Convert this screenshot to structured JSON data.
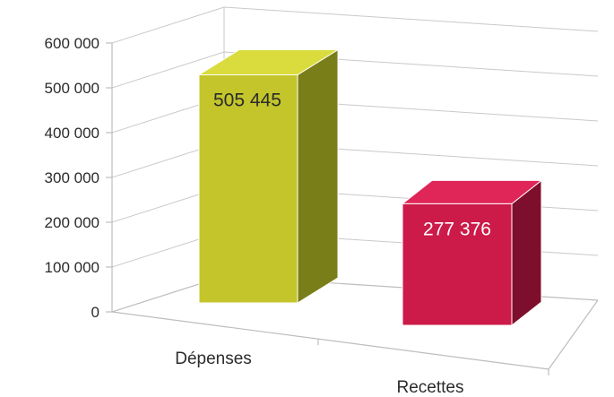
{
  "chart_data": {
    "type": "bar",
    "categories": [
      "Dépenses",
      "Recettes"
    ],
    "values": [
      505445,
      277376
    ],
    "value_labels": [
      "505 445",
      "277 376"
    ],
    "ylim": [
      0,
      600000
    ],
    "yticks": [
      0,
      100000,
      200000,
      300000,
      400000,
      500000,
      600000
    ],
    "ytick_labels": [
      "0",
      "100 000",
      "200 000",
      "300 000",
      "400 000",
      "500 000",
      "600 000"
    ],
    "grid": true,
    "legend": "none",
    "style": "3d-column",
    "colors": {
      "Dépenses": {
        "front": "#c3c52a",
        "side": "#7a7e18",
        "top": "#d9dc3c",
        "label": "#2b2b2b"
      },
      "Recettes": {
        "front": "#cc1a49",
        "side": "#7e0f2c",
        "top": "#e02558",
        "label": "#ffffff"
      }
    }
  }
}
